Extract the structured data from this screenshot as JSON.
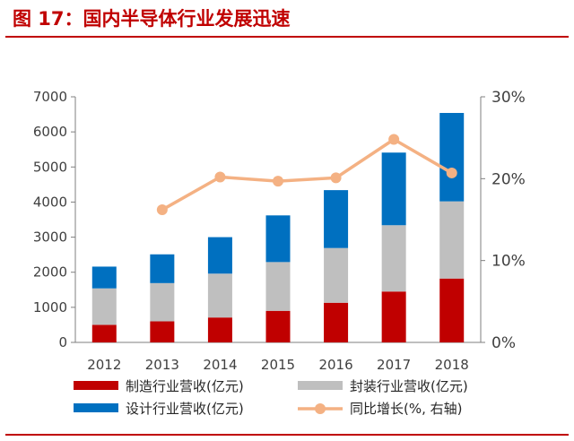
{
  "figure": {
    "title": "图 17：国内半导体行业发展迅速"
  },
  "chart_data": {
    "type": "bar",
    "stacked": true,
    "categories": [
      "2012",
      "2013",
      "2014",
      "2015",
      "2016",
      "2017",
      "2018"
    ],
    "series": [
      {
        "name": "制造行业营收(亿元)",
        "kind": "bar",
        "axis": "left",
        "color": "#c00000",
        "values": [
          500,
          600,
          710,
          900,
          1130,
          1450,
          1820
        ]
      },
      {
        "name": "封装行业营收(亿元)",
        "kind": "bar",
        "axis": "left",
        "color": "#bfbfbf",
        "values": [
          1040,
          1090,
          1250,
          1390,
          1560,
          1890,
          2200
        ]
      },
      {
        "name": "设计行业营收(亿元)",
        "kind": "bar",
        "axis": "left",
        "color": "#0070c0",
        "values": [
          620,
          820,
          1040,
          1330,
          1650,
          2070,
          2520
        ]
      },
      {
        "name": "同比增长(%, 右轴)",
        "kind": "line",
        "axis": "right",
        "color": "#f4b183",
        "values": [
          null,
          16.2,
          20.2,
          19.7,
          20.1,
          24.8,
          20.7
        ]
      }
    ],
    "y_left": {
      "min": 0,
      "max": 7000,
      "ticks": [
        "0",
        "1000",
        "2000",
        "3000",
        "4000",
        "5000",
        "6000",
        "7000"
      ]
    },
    "y_right": {
      "min": 0,
      "max": 30,
      "ticks": [
        "0%",
        "10%",
        "20%",
        "30%"
      ]
    },
    "grid": false,
    "legend_position": "bottom"
  }
}
